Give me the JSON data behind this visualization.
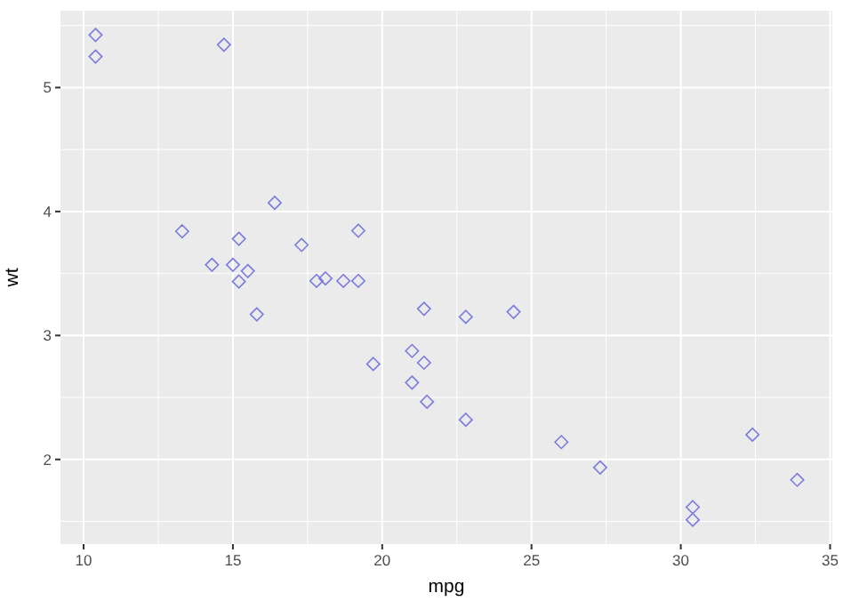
{
  "chart_data": {
    "type": "scatter",
    "xlabel": "mpg",
    "ylabel": "wt",
    "x": [
      21.0,
      21.0,
      22.8,
      21.4,
      18.7,
      18.1,
      14.3,
      24.4,
      22.8,
      19.2,
      17.8,
      16.4,
      17.3,
      15.2,
      10.4,
      10.4,
      14.7,
      32.4,
      30.4,
      33.9,
      21.5,
      15.5,
      15.2,
      13.3,
      19.2,
      27.3,
      26.0,
      30.4,
      15.8,
      19.7,
      15.0,
      21.4
    ],
    "series": [
      {
        "color": "#7b7bdf",
        "values": [
          2.62,
          2.875,
          2.32,
          3.215,
          3.44,
          3.46,
          3.57,
          3.19,
          3.15,
          3.44,
          3.44,
          4.07,
          3.73,
          3.78,
          5.25,
          5.424,
          5.345,
          2.2,
          1.615,
          1.835,
          2.465,
          3.52,
          3.435,
          3.84,
          3.845,
          1.935,
          2.14,
          1.513,
          3.17,
          2.77,
          3.57,
          2.78
        ]
      }
    ],
    "xlim": [
      9.225,
      35.075
    ],
    "ylim": [
      1.317,
      5.62
    ],
    "xticks": [
      10,
      15,
      20,
      25,
      30,
      35
    ],
    "yticks": [
      2,
      3,
      4,
      5
    ],
    "grid": true,
    "marker": "diamond"
  }
}
